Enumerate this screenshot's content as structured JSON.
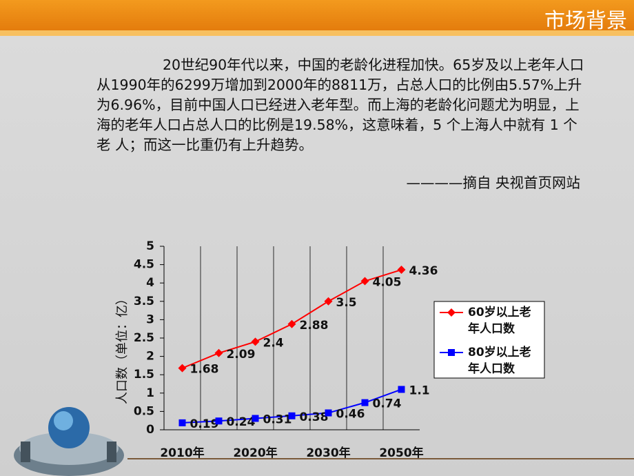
{
  "header": {
    "title": "市场背景"
  },
  "body": {
    "paragraph": "20世纪90年代以来，中国的老龄化进程加快。65岁及以上老年人口从1990年的6299万增加到2000年的8811万，占总人口的比例由5.57%上升为6.96%，目前中国人口已经进入老年型。而上海的老龄化问题尤为明显，上海的老年人口占总人口的比例是19.58%，这意味着，5 个上海人中就有 1 个老 人；而这一比重仍有上升趋势。",
    "source": "————摘自 央视首页网站"
  },
  "chart_data": {
    "type": "line",
    "y_label": "人口数（单位：亿）",
    "categories": [
      "2010年",
      null,
      "2020年",
      null,
      "2030年",
      null,
      "2050年"
    ],
    "series": [
      {
        "name": "60岁以上老年人口数",
        "color": "#ff0000",
        "values": [
          1.68,
          2.09,
          2.4,
          2.88,
          3.5,
          4.05,
          4.36
        ]
      },
      {
        "name": "80岁以上老年人口数",
        "color": "#0000ff",
        "values": [
          0.19,
          0.24,
          0.31,
          0.38,
          0.46,
          0.74,
          1.1
        ]
      }
    ],
    "ylim": [
      0,
      5
    ],
    "yticks": [
      0,
      0.5,
      1,
      1.5,
      2,
      2.5,
      3,
      3.5,
      4,
      4.5,
      5
    ],
    "grid": true,
    "legend": "right"
  }
}
